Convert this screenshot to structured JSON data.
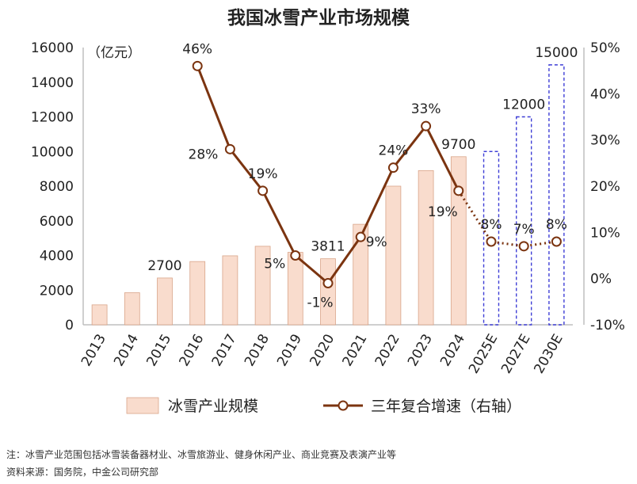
{
  "chart_data": {
    "type": "bar+line",
    "title": "我国冰雪产业市场规模",
    "left_axis_unit": "（亿元）",
    "left_ylim": [
      0,
      16000
    ],
    "left_ticks": [
      "0",
      "2000",
      "4000",
      "6000",
      "8000",
      "10000",
      "12000",
      "14000",
      "16000"
    ],
    "right_ylim": [
      -10,
      50
    ],
    "right_ticks": [
      "-10%",
      "0%",
      "10%",
      "20%",
      "30%",
      "40%",
      "50%"
    ],
    "categories": [
      "2013",
      "2014",
      "2015",
      "2016",
      "2017",
      "2018",
      "2019",
      "2020",
      "2021",
      "2022",
      "2023",
      "2024",
      "2025E",
      "2027E",
      "2030E"
    ],
    "bar_series": {
      "name": "冰雪产业规模",
      "values": [
        1150,
        1850,
        2700,
        3650,
        3980,
        4530,
        4180,
        3811,
        5800,
        8000,
        8900,
        9700,
        10000,
        12000,
        15000
      ],
      "estimated": [
        false,
        false,
        false,
        false,
        false,
        false,
        false,
        false,
        false,
        false,
        false,
        false,
        true,
        true,
        true
      ],
      "labels": [
        "",
        "",
        "2700",
        "",
        "",
        "",
        "",
        "3811",
        "",
        "",
        "",
        "9700",
        "",
        "12000",
        "15000"
      ]
    },
    "line_series": {
      "name": "三年复合增速（右轴）",
      "values": [
        null,
        null,
        null,
        46,
        28,
        19,
        5,
        -1,
        9,
        24,
        33,
        19,
        8,
        7,
        8
      ],
      "labels": [
        "",
        "",
        "",
        "46%",
        "28%",
        "19%",
        "5%",
        "-1%",
        "9%",
        "24%",
        "33%",
        "19%",
        "8%",
        "7%",
        "8%"
      ],
      "dotted_from_index": 11
    },
    "legend_position": "bottom",
    "colors": {
      "bar_fill": "#f9dccd",
      "bar_stroke": "#d9a58a",
      "estimate_stroke": "#3f3fd6",
      "line": "#7b3410",
      "axis": "#bfbfbf"
    }
  },
  "footer": {
    "note": "注：冰雪产业范围包括冰雪装备器材业、冰雪旅游业、健身休闲产业、商业竞赛及表演产业等",
    "source": "资料来源：国务院，中金公司研究部"
  }
}
